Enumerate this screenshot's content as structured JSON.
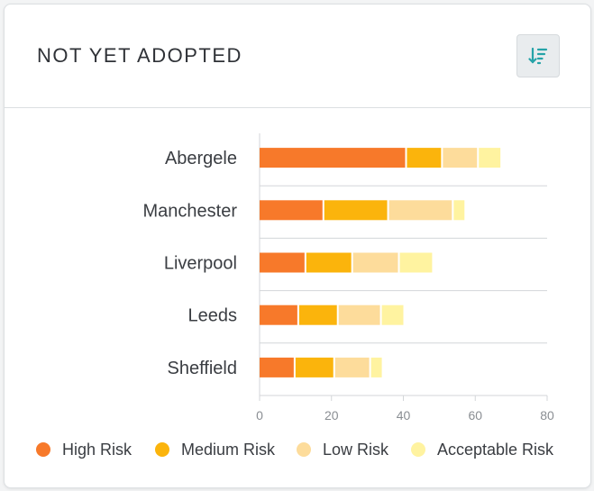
{
  "card": {
    "title": "NOT YET ADOPTED",
    "sort_icon": "sort-descending-icon"
  },
  "chart_data": {
    "type": "bar",
    "orientation": "horizontal",
    "stacked": true,
    "categories": [
      "Abergele",
      "Manchester",
      "Liverpool",
      "Leeds",
      "Sheffield"
    ],
    "series": [
      {
        "name": "High Risk",
        "color": "#f7792a",
        "values": [
          41,
          18,
          13,
          11,
          10
        ]
      },
      {
        "name": "Medium Risk",
        "color": "#fbb40c",
        "values": [
          10,
          18,
          13,
          11,
          11
        ]
      },
      {
        "name": "Low Risk",
        "color": "#fddc9b",
        "values": [
          10,
          18,
          13,
          12,
          10
        ]
      },
      {
        "name": "Acceptable Risk",
        "color": "#fff3a0",
        "values": [
          6,
          3,
          9,
          6,
          3
        ]
      }
    ],
    "xlim": [
      0,
      80
    ],
    "xticks": [
      "0",
      "20",
      "40",
      "60",
      "80"
    ],
    "grid": "horizontal separators",
    "legend_position": "bottom"
  }
}
